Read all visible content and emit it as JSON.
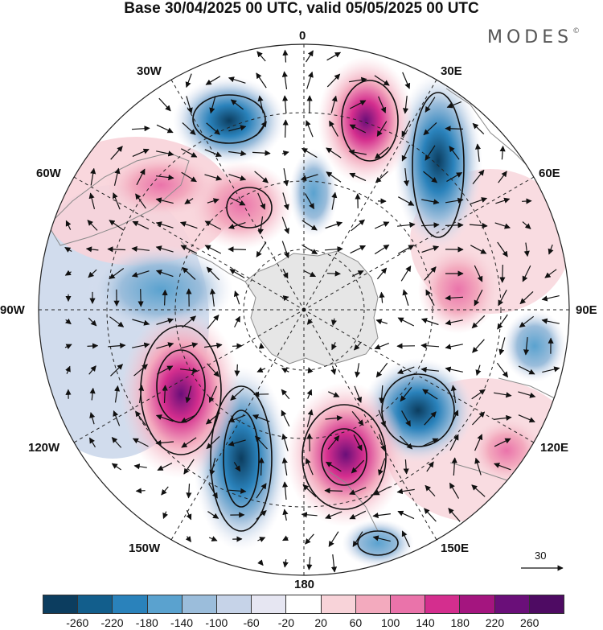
{
  "title": "Base 30/04/2025 00 UTC, valid 05/05/2025 00 UTC",
  "brand": {
    "name": "MODES",
    "mark": "©"
  },
  "projection": "south polar stereographic",
  "longitude_labels": {
    "top": "0",
    "top_right": "30E",
    "right_upper": "60E",
    "right": "90E",
    "right_lower": "120E",
    "bottom_right": "150E",
    "bottom": "180",
    "bottom_left": "150W",
    "left_lower": "120W",
    "left": "90W",
    "left_upper": "60W",
    "top_left": "30W"
  },
  "reference_vector": {
    "label": "30"
  },
  "colorbar": {
    "colors": [
      "#0c3d5f",
      "#125e8c",
      "#2a82bb",
      "#5aa2cf",
      "#9bbddb",
      "#c6d3e8",
      "#e6e6f2",
      "#ffffff",
      "#f8d3d9",
      "#f3aabe",
      "#ea73aa",
      "#d42e8e",
      "#a4157f",
      "#6a0f79",
      "#4e0b63"
    ],
    "ticks": [
      "-260",
      "-220",
      "-180",
      "-140",
      "-100",
      "-60",
      "-20",
      "20",
      "60",
      "100",
      "140",
      "180",
      "220",
      "260"
    ]
  },
  "colors": {
    "land": "#e6e6e6",
    "coastline": "#8a8a8a",
    "contour": "#111111",
    "grid": "#222222"
  },
  "icons": {
    "wind-vector": "arrow",
    "antarctica": "landmass"
  }
}
